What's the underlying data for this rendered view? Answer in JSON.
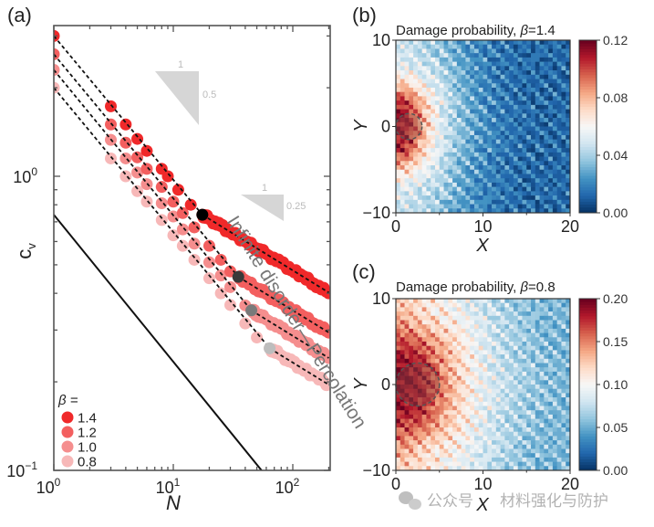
{
  "panel_labels": {
    "a": "(a)",
    "b": "(b)",
    "c": "(c)"
  },
  "watermark": {
    "prefix": "公众号",
    "name": "材料强化与防护",
    "icon": "wechat-icon"
  },
  "chart_data": [
    {
      "id": "a",
      "type": "scatter",
      "xlabel": "N",
      "ylabel": "c",
      "ylabel_sub": "v",
      "xscale": "log",
      "yscale": "log",
      "xlim": [
        1,
        200
      ],
      "ylim": [
        0.1,
        3.2
      ],
      "xticks": [
        {
          "v": 1,
          "base": "10",
          "exp": "0"
        },
        {
          "v": 10,
          "base": "10",
          "exp": "1"
        },
        {
          "v": 100,
          "base": "10",
          "exp": "2"
        }
      ],
      "yticks": [
        {
          "v": 0.1,
          "base": "10",
          "exp": "−1"
        },
        {
          "v": 1,
          "base": "10",
          "exp": "0"
        }
      ],
      "legend": {
        "title": "β =",
        "placement": "bottom-left"
      },
      "series": [
        {
          "name": "1.4",
          "color": "#f0292a",
          "crossover": {
            "N": 17.5,
            "c": 0.74,
            "color": "#000000"
          },
          "x": [
            1,
            3,
            4,
            5,
            6,
            8,
            9,
            11,
            14,
            17.5,
            20,
            25,
            30,
            40,
            50,
            60,
            80,
            100,
            120,
            150,
            200
          ],
          "y": [
            3.0,
            1.73,
            1.5,
            1.34,
            1.22,
            1.06,
            1.0,
            0.9,
            0.8,
            0.74,
            0.716,
            0.677,
            0.647,
            0.6,
            0.569,
            0.544,
            0.506,
            0.479,
            0.457,
            0.432,
            0.4
          ]
        },
        {
          "name": "1.2",
          "color": "#f35f5f",
          "crossover": {
            "N": 35,
            "c": 0.455,
            "color": "#3a3a3a"
          },
          "x": [
            1,
            3,
            4,
            5,
            6,
            8,
            10,
            12,
            15,
            20,
            25,
            30,
            35,
            40,
            50,
            60,
            80,
            100,
            120,
            150,
            200
          ],
          "y": [
            2.6,
            1.5,
            1.3,
            1.16,
            1.06,
            0.92,
            0.82,
            0.75,
            0.67,
            0.58,
            0.52,
            0.475,
            0.455,
            0.44,
            0.416,
            0.398,
            0.37,
            0.35,
            0.334,
            0.316,
            0.294
          ]
        },
        {
          "name": "1.0",
          "color": "#f58e8e",
          "crossover": {
            "N": 45,
            "c": 0.35,
            "color": "#7a7a7a"
          },
          "x": [
            1,
            3,
            4,
            5,
            6,
            8,
            10,
            12,
            15,
            20,
            25,
            30,
            40,
            45,
            50,
            60,
            80,
            100,
            120,
            150,
            200
          ],
          "y": [
            2.3,
            1.33,
            1.15,
            1.03,
            0.94,
            0.81,
            0.73,
            0.66,
            0.59,
            0.51,
            0.46,
            0.42,
            0.364,
            0.35,
            0.341,
            0.326,
            0.303,
            0.287,
            0.274,
            0.259,
            0.241
          ]
        },
        {
          "name": "0.8",
          "color": "#f7b8b8",
          "crossover": {
            "N": 64,
            "c": 0.26,
            "color": "#bdbdbd"
          },
          "x": [
            1,
            3,
            4,
            5,
            6,
            8,
            10,
            12,
            15,
            20,
            25,
            30,
            40,
            50,
            64,
            80,
            100,
            120,
            150,
            200
          ],
          "y": [
            2.0,
            1.15,
            1.0,
            0.89,
            0.82,
            0.71,
            0.63,
            0.58,
            0.52,
            0.45,
            0.4,
            0.365,
            0.316,
            0.283,
            0.26,
            0.246,
            0.232,
            0.222,
            0.21,
            0.196
          ]
        }
      ],
      "fit_exponents": [
        -0.5,
        -0.25
      ],
      "reference_line": {
        "label": "Infinite disorder—Percolation",
        "prefactor": 0.74,
        "exponent": -0.5
      },
      "slope_triangles": [
        {
          "run": "1",
          "rise": "0.5"
        },
        {
          "run": "1",
          "rise": "0.25"
        }
      ]
    },
    {
      "id": "b",
      "type": "heatmap",
      "title": "Damage probability, ",
      "title_symbol": "β",
      "title_value": "=1.4",
      "xlabel": "X",
      "ylabel": "Y",
      "xlim": [
        0,
        20
      ],
      "ylim": [
        -10,
        10
      ],
      "xticks": [
        "0",
        "10",
        "20"
      ],
      "yticks": [
        "−10",
        "0",
        "10"
      ],
      "colorbar": {
        "min": 0,
        "max": 0.12,
        "ticks": [
          "0.00",
          "0.04",
          "0.08",
          "0.12"
        ],
        "colormap": "RdBu_r"
      },
      "marker_circle": {
        "x": 1.5,
        "y": 0,
        "r": 1.5
      },
      "grid_x": [
        1,
        3,
        5,
        7,
        9,
        11,
        13,
        15,
        17,
        19
      ],
      "grid_y": [
        9,
        7,
        5,
        3,
        1,
        -1,
        -3,
        -5,
        -7,
        -9
      ],
      "values": [
        [
          0.045,
          0.04,
          0.035,
          0.025,
          0.02,
          0.015,
          0.012,
          0.01,
          0.01,
          0.01
        ],
        [
          0.05,
          0.045,
          0.04,
          0.03,
          0.02,
          0.015,
          0.012,
          0.01,
          0.01,
          0.01
        ],
        [
          0.07,
          0.055,
          0.045,
          0.03,
          0.022,
          0.016,
          0.012,
          0.01,
          0.01,
          0.01
        ],
        [
          0.1,
          0.075,
          0.05,
          0.035,
          0.024,
          0.017,
          0.013,
          0.011,
          0.01,
          0.01
        ],
        [
          0.11,
          0.08,
          0.05,
          0.035,
          0.025,
          0.018,
          0.013,
          0.011,
          0.01,
          0.01
        ],
        [
          0.11,
          0.08,
          0.05,
          0.035,
          0.025,
          0.018,
          0.013,
          0.011,
          0.01,
          0.01
        ],
        [
          0.1,
          0.07,
          0.048,
          0.033,
          0.023,
          0.017,
          0.013,
          0.011,
          0.01,
          0.01
        ],
        [
          0.07,
          0.055,
          0.043,
          0.03,
          0.022,
          0.016,
          0.012,
          0.01,
          0.01,
          0.01
        ],
        [
          0.05,
          0.045,
          0.04,
          0.03,
          0.02,
          0.015,
          0.012,
          0.01,
          0.01,
          0.01
        ],
        [
          0.045,
          0.04,
          0.035,
          0.025,
          0.02,
          0.015,
          0.012,
          0.01,
          0.01,
          0.01
        ]
      ]
    },
    {
      "id": "c",
      "type": "heatmap",
      "title": "Damage probability, ",
      "title_symbol": "β",
      "title_value": "=0.8",
      "xlabel": "X",
      "ylabel": "Y",
      "xlim": [
        0,
        20
      ],
      "ylim": [
        -10,
        10
      ],
      "xticks": [
        "0",
        "10",
        "20"
      ],
      "yticks": [
        "−10",
        "0",
        "10"
      ],
      "colorbar": {
        "min": 0,
        "max": 0.2,
        "ticks": [
          "0.00",
          "0.05",
          "0.10",
          "0.15",
          "0.20"
        ],
        "colormap": "RdBu_r"
      },
      "marker_circle": {
        "x": 2.5,
        "y": 0,
        "r": 2.5
      },
      "grid_x": [
        1,
        3,
        5,
        7,
        9,
        11,
        13,
        15,
        17,
        19
      ],
      "grid_y": [
        9,
        7,
        5,
        3,
        1,
        -1,
        -3,
        -5,
        -7,
        -9
      ],
      "values": [
        [
          0.12,
          0.11,
          0.1,
          0.09,
          0.08,
          0.07,
          0.06,
          0.055,
          0.05,
          0.05
        ],
        [
          0.14,
          0.12,
          0.11,
          0.1,
          0.085,
          0.075,
          0.065,
          0.055,
          0.05,
          0.05
        ],
        [
          0.16,
          0.15,
          0.13,
          0.11,
          0.09,
          0.075,
          0.065,
          0.06,
          0.05,
          0.05
        ],
        [
          0.18,
          0.17,
          0.14,
          0.115,
          0.095,
          0.08,
          0.065,
          0.06,
          0.055,
          0.05
        ],
        [
          0.19,
          0.18,
          0.15,
          0.12,
          0.095,
          0.08,
          0.07,
          0.06,
          0.055,
          0.05
        ],
        [
          0.19,
          0.18,
          0.15,
          0.12,
          0.095,
          0.08,
          0.07,
          0.06,
          0.055,
          0.05
        ],
        [
          0.18,
          0.17,
          0.14,
          0.115,
          0.095,
          0.08,
          0.065,
          0.06,
          0.055,
          0.05
        ],
        [
          0.16,
          0.15,
          0.13,
          0.11,
          0.09,
          0.075,
          0.065,
          0.06,
          0.05,
          0.05
        ],
        [
          0.14,
          0.12,
          0.11,
          0.1,
          0.085,
          0.075,
          0.065,
          0.055,
          0.05,
          0.05
        ],
        [
          0.12,
          0.11,
          0.1,
          0.09,
          0.08,
          0.07,
          0.06,
          0.055,
          0.05,
          0.05
        ]
      ]
    }
  ]
}
